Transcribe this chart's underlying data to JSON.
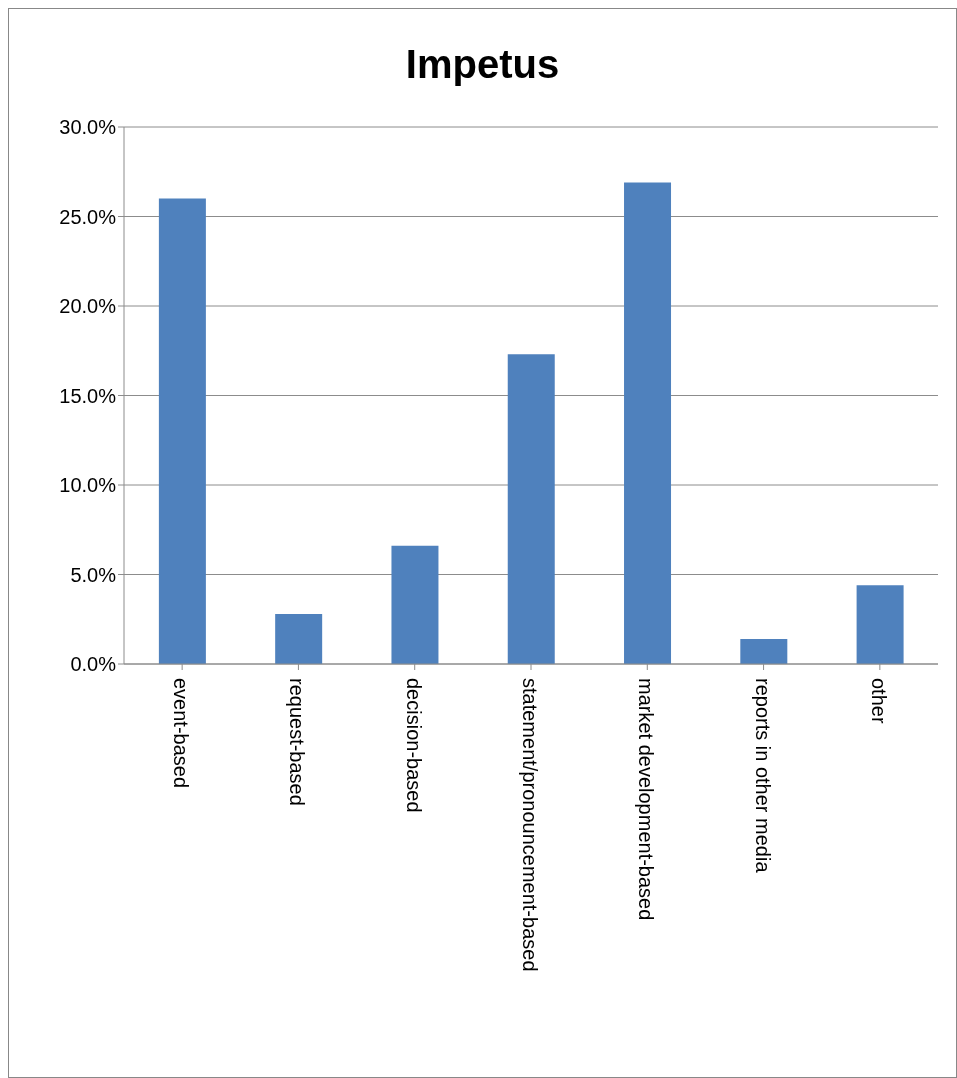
{
  "chart_data": {
    "type": "bar",
    "title": "Impetus",
    "categories": [
      "event-based",
      "request-based",
      "decision-based",
      "statement/pronouncement-based",
      "market development-based",
      "reports in other media",
      "other"
    ],
    "values": [
      26.0,
      2.8,
      6.6,
      17.3,
      26.9,
      1.4,
      4.4
    ],
    "color": "#4f81bd",
    "ylim": [
      0,
      30
    ],
    "yticks": [
      {
        "value": 0,
        "label": "0.0%"
      },
      {
        "value": 5,
        "label": "5.0%"
      },
      {
        "value": 10,
        "label": "10.0%"
      },
      {
        "value": 15,
        "label": "15.0%"
      },
      {
        "value": 20,
        "label": "20.0%"
      },
      {
        "value": 25,
        "label": "25.0%"
      },
      {
        "value": 30,
        "label": "30.0%"
      }
    ],
    "grid": "y",
    "legend": false
  }
}
